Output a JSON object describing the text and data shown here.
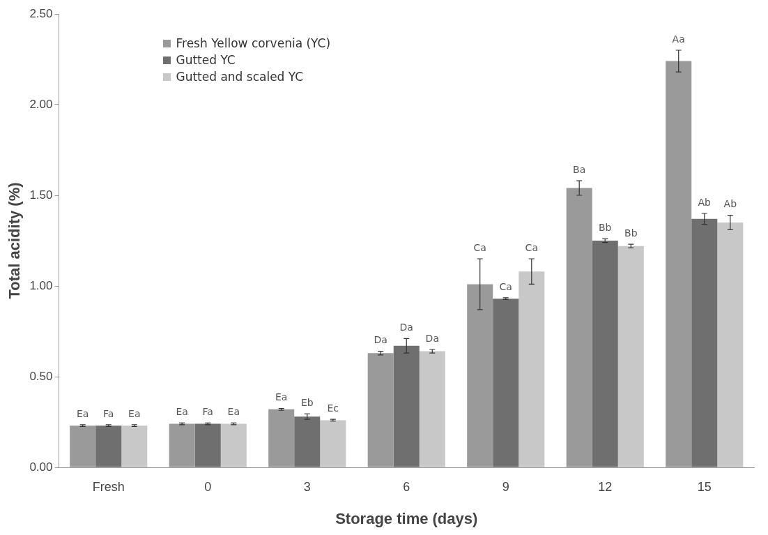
{
  "chart_data": {
    "type": "bar",
    "xlabel": "Storage time (days)",
    "ylabel": "Total acidity (%)",
    "categories": [
      "Fresh",
      "0",
      "3",
      "6",
      "9",
      "12",
      "15"
    ],
    "series": [
      {
        "name": "Fresh Yellow corvenia (YC)",
        "color": "#9a9a9a",
        "values": [
          0.23,
          0.24,
          0.32,
          0.63,
          1.01,
          1.54,
          2.24
        ],
        "errors": [
          0.005,
          0.005,
          0.005,
          0.01,
          0.14,
          0.04,
          0.06
        ],
        "value_labels": [
          "Ea",
          "Ea",
          "Ea",
          "Da",
          "Ca",
          "Ba",
          "Aa"
        ]
      },
      {
        "name": "Gutted YC",
        "color": "#6f6f6f",
        "values": [
          0.23,
          0.24,
          0.28,
          0.67,
          0.93,
          1.25,
          1.37
        ],
        "errors": [
          0.005,
          0.005,
          0.015,
          0.04,
          0.005,
          0.01,
          0.03
        ],
        "value_labels": [
          "Fa",
          "Fa",
          "Eb",
          "Da",
          "Ca",
          "Bb",
          "Ab"
        ]
      },
      {
        "name": "Gutted and scaled YC",
        "color": "#c8c8c8",
        "values": [
          0.23,
          0.24,
          0.26,
          0.64,
          1.08,
          1.22,
          1.35
        ],
        "errors": [
          0.005,
          0.005,
          0.005,
          0.01,
          0.07,
          0.01,
          0.04
        ],
        "value_labels": [
          "Ea",
          "Ea",
          "Ec",
          "Da",
          "Ca",
          "Bb",
          "Ab"
        ]
      }
    ],
    "ylim": [
      0,
      2.5
    ],
    "yticks": [
      {
        "value": 0,
        "label": "0.00"
      },
      {
        "value": 0.5,
        "label": "0.50"
      },
      {
        "value": 1,
        "label": "1.00"
      },
      {
        "value": 1.5,
        "label": "1.50"
      },
      {
        "value": 2,
        "label": "2.00"
      },
      {
        "value": 2.5,
        "label": "2.50"
      }
    ],
    "grid": false,
    "legend": "top left"
  }
}
